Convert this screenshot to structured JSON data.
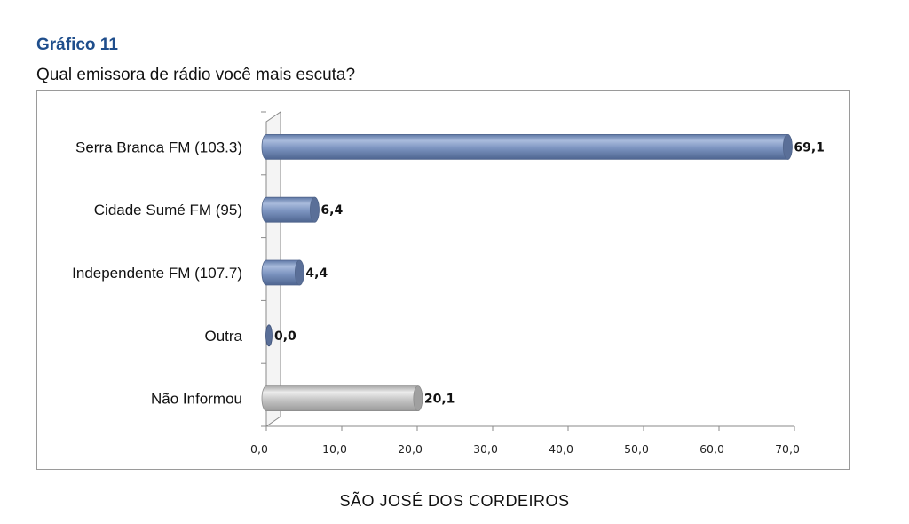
{
  "header": {
    "chart_number": "Gráfico 11",
    "question": "Qual emissora de rádio você mais escuta?"
  },
  "footer": {
    "location": "SÃO JOSÉ DOS CORDEIROS"
  },
  "colors": {
    "bar_blue": "#7b93bd",
    "bar_gray": "#c4c4c4"
  },
  "chart_data": {
    "type": "bar",
    "orientation": "horizontal",
    "title": "",
    "xlabel": "",
    "ylabel": "",
    "categories": [
      "Serra Branca FM (103.3)",
      "Cidade Sumé FM (95)",
      "Independente FM (107.7)",
      "Outra",
      "Não Informou"
    ],
    "values": [
      69.1,
      6.4,
      4.4,
      0.0,
      20.1
    ],
    "value_labels": [
      "69,1",
      "6,4",
      "4,4",
      "0,0",
      "20,1"
    ],
    "bar_colors": [
      "#7b93bd",
      "#7b93bd",
      "#7b93bd",
      "#7b93bd",
      "#c4c4c4"
    ],
    "xlim": [
      0,
      70
    ],
    "x_ticks": [
      0,
      10,
      20,
      30,
      40,
      50,
      60,
      70
    ],
    "x_tick_labels": [
      "0,0",
      "10,0",
      "20,0",
      "30,0",
      "40,0",
      "50,0",
      "60,0",
      "70,0"
    ],
    "grid": false,
    "legend": "none"
  }
}
